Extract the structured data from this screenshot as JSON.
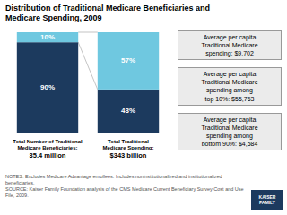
{
  "chart_data": {
    "type": "bar",
    "stacked": true,
    "title": "Distribution of Traditional Medicare Beneficiaries and\nMedicare Spending, 2009",
    "categories": [
      "Total Number of Traditional\nMedicare Beneficiaries:\n35.4 million",
      "Total Traditional\nMedicare Spending:\n$343 billion"
    ],
    "series": [
      {
        "color": "#1c3a5e",
        "values": [
          90,
          43
        ],
        "value_labels": [
          "90%",
          "43%"
        ]
      },
      {
        "color": "#6fc8e0",
        "values": [
          10,
          57
        ],
        "value_labels": [
          "10%",
          "57%"
        ]
      }
    ],
    "ylim": [
      0,
      100
    ],
    "data_labels": true,
    "tick_labels": false,
    "annotations": [
      "Average per capita\nTraditional Medicare\nspending: $9,702",
      "Average per capita\nTraditional Medicare\nspending among\ntop 10%: $55,763",
      "Average per capita\nTraditional Medicare\nspending among\nbottom 90%: $4,584"
    ],
    "notes": "NOTES: Excludes Medicare Advantage enrollees. Includes noninstitutionalized and institutionalized beneficiaries.\nSOURCE: Kaiser Family Foundation analysis of the CMS Medicare Current Beneficiary Survey Cost and Use File, 2009.",
    "logo": "KAISER\nFAMILY"
  }
}
